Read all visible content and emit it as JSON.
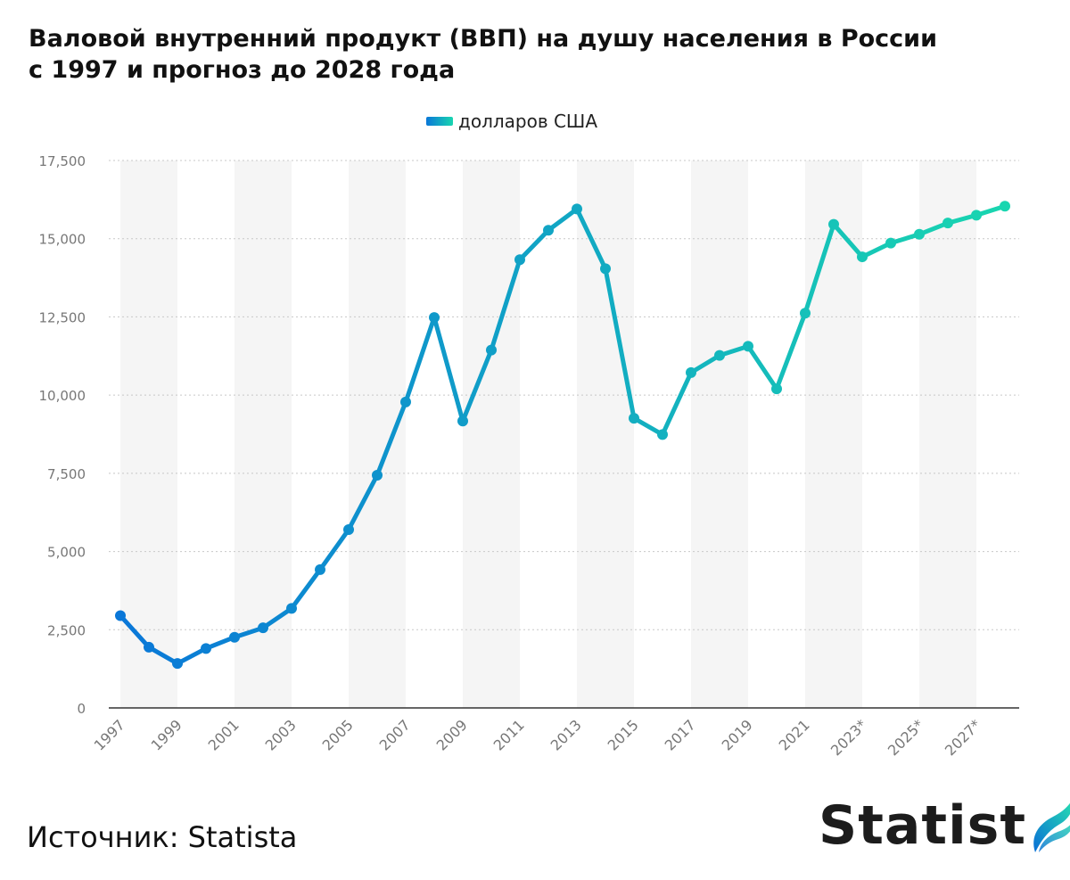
{
  "title_lines": [
    "Валовой внутренний продукт (ВВП) на душу населения в России",
    "с 1997 и прогноз до 2028 года"
  ],
  "legend_label": "долларов США",
  "source": "Источник: Statista",
  "logo": {
    "text": "Statista",
    "icon": "statista-wave-icon"
  },
  "colors": {
    "start": "#0a77d8",
    "end": "#19d6b0",
    "band": "#f5f5f5",
    "grid": "#c8c8c8",
    "axis": "#333333",
    "tick": "#777777"
  },
  "chart_data": {
    "type": "line",
    "x": [
      "1997",
      "1998",
      "1999",
      "2000",
      "2001",
      "2002",
      "2003",
      "2004",
      "2005",
      "2006",
      "2007",
      "2008",
      "2009",
      "2010",
      "2011",
      "2012",
      "2013",
      "2014",
      "2015",
      "2016",
      "2017",
      "2018",
      "2019",
      "2020",
      "2021",
      "2022",
      "2023*",
      "2024*",
      "2025*",
      "2026*",
      "2027*",
      "2028*"
    ],
    "series": [
      {
        "name": "долларов США",
        "values": [
          2950,
          1940,
          1420,
          1900,
          2260,
          2560,
          3180,
          4420,
          5700,
          7440,
          9780,
          12480,
          9170,
          11440,
          14330,
          15270,
          15950,
          14040,
          9260,
          8740,
          10720,
          11270,
          11560,
          10200,
          12620,
          15460,
          14420,
          14860,
          15140,
          15500,
          15750,
          16040
        ]
      }
    ],
    "x_tick_labels": [
      "1997",
      "1999",
      "2001",
      "2003",
      "2005",
      "2007",
      "2009",
      "2011",
      "2013",
      "2015",
      "2017",
      "2019",
      "2021",
      "2023*",
      "2025*",
      "2027*"
    ],
    "y_ticks": [
      0,
      2500,
      5000,
      7500,
      10000,
      12500,
      15000,
      17500
    ],
    "y_tick_labels": [
      "0",
      "2,500",
      "5,000",
      "7,500",
      "10,000",
      "12,500",
      "15,000",
      "17,500"
    ],
    "ylim": [
      0,
      17500
    ],
    "grid": true,
    "legend_position": "top-center"
  }
}
